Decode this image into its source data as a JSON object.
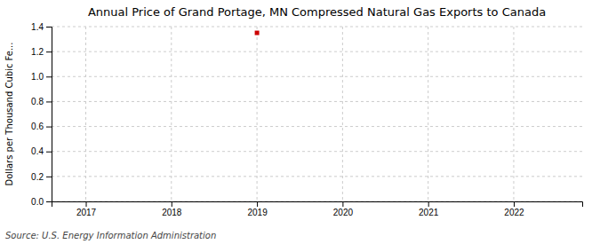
{
  "chart_data": {
    "type": "scatter",
    "title": "Annual Price of Grand Portage, MN Compressed Natural Gas Exports to Canada",
    "y_label": "Dollars per Thousand Cubic Fe...",
    "source": "Source: U.S. Energy Information Administration",
    "x": [
      2019
    ],
    "values": [
      1.35
    ],
    "color": "#cc0000",
    "marker": "square",
    "xlim": [
      2016.6,
      2022.8
    ],
    "xticks": [
      2017,
      2018,
      2019,
      2020,
      2021,
      2022
    ],
    "ylim": [
      0.0,
      1.4
    ],
    "yticks": [
      {
        "value": 0.0,
        "label": "0.0"
      },
      0.2,
      0.4,
      0.6,
      0.8,
      {
        "value": 1.0,
        "label": "1.0"
      },
      1.2,
      1.4
    ],
    "grid": true
  }
}
